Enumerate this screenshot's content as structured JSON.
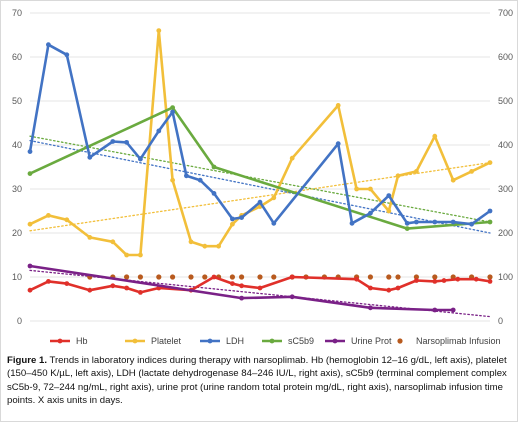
{
  "colors": {
    "hb": "#e0302a",
    "platelet": "#f2bf3a",
    "ldh": "#4273c4",
    "sc5b9": "#6aaa3f",
    "urine_prot": "#7a2187",
    "infusion": "#b85a1e",
    "grid": "#dcdcdc",
    "axis_text": "#595959"
  },
  "caption": {
    "label": "Figure 1.",
    "text": " Trends in laboratory indices during therapy with narsoplimab. Hb (hemoglobin 12–16 g/dL, left axis), platelet (150–450 K/µL, left axis), LDH (lactate dehydrogenase 84–246 IU/L, right axis), sC5b9 (terminal complement complex sC5b-9, 72–244 ng/mL, right axis), urine prot (urine random total protein mg/dL, right axis), narsoplimab infusion time points. X axis units in days."
  },
  "chart_data": {
    "type": "line",
    "title": "",
    "xlabel": "",
    "ylabel": "",
    "xlim": [
      0,
      100
    ],
    "ylim": [
      0,
      70
    ],
    "y2lim": [
      0,
      700
    ],
    "y_ticks": [
      0,
      10,
      20,
      30,
      40,
      50,
      60,
      70
    ],
    "y2_ticks": [
      0,
      100,
      200,
      300,
      400,
      500,
      600,
      700
    ],
    "grid": true,
    "legend_position": "bottom",
    "series": [
      {
        "name": "Hb",
        "key": "hb",
        "axis": "left",
        "trendline": false,
        "x": [
          0,
          4,
          8,
          13,
          18,
          21,
          24,
          28,
          35,
          40,
          44,
          46,
          50,
          57,
          71,
          74,
          78,
          80,
          84,
          88,
          90,
          93,
          97,
          100
        ],
        "y": [
          7,
          9,
          8.5,
          7,
          8,
          7.5,
          6.5,
          7.5,
          7,
          10,
          8.5,
          8,
          7.5,
          10,
          9.5,
          7.5,
          7,
          7.5,
          9.2,
          9,
          9.2,
          9.5,
          9.5,
          9
        ]
      },
      {
        "name": "Platelet",
        "key": "platelet",
        "axis": "left",
        "trendline": true,
        "trend": [
          [
            0,
            20.5
          ],
          [
            100,
            36
          ]
        ],
        "x": [
          0,
          4,
          8,
          13,
          18,
          21,
          24,
          28,
          31,
          35,
          38,
          41,
          44,
          46,
          50,
          53,
          57,
          67,
          71,
          74,
          78,
          80,
          84,
          88,
          92,
          96,
          100
        ],
        "y": [
          22,
          24,
          23,
          19,
          18,
          15,
          15,
          66,
          32,
          18,
          17,
          17,
          22,
          24,
          26,
          28,
          37,
          49,
          30,
          30,
          25,
          33,
          34,
          42,
          32,
          34,
          36
        ]
      },
      {
        "name": "LDH",
        "key": "ldh",
        "axis": "right",
        "trendline": true,
        "trend": [
          [
            0,
            410
          ],
          [
            100,
            200
          ]
        ],
        "x": [
          0,
          4,
          8,
          13,
          18,
          21,
          24,
          28,
          31,
          34,
          37,
          40,
          44,
          46,
          50,
          53,
          67,
          70,
          74,
          78,
          82,
          84,
          88,
          92,
          96,
          100
        ],
        "y": [
          385,
          628,
          605,
          372,
          408,
          406,
          368,
          432,
          475,
          330,
          320,
          290,
          232,
          235,
          270,
          222,
          403,
          222,
          245,
          285,
          222,
          225,
          225,
          225,
          220,
          250
        ]
      },
      {
        "name": "sC5b9",
        "key": "sc5b9",
        "axis": "right",
        "trendline": true,
        "trend": [
          [
            0,
            420
          ],
          [
            100,
            225
          ]
        ],
        "x": [
          0,
          31,
          40,
          82,
          100
        ],
        "y": [
          335,
          485,
          350,
          210,
          225
        ]
      },
      {
        "name": "Urine Prot",
        "key": "urine_prot",
        "axis": "right",
        "trendline": true,
        "trend": [
          [
            0,
            115
          ],
          [
            100,
            10
          ]
        ],
        "x": [
          0,
          46,
          57,
          74,
          88,
          92
        ],
        "y": [
          125,
          52,
          55,
          30,
          25,
          25
        ]
      },
      {
        "name": "Narsoplimab Infusion",
        "key": "infusion",
        "axis": "left",
        "marker_only": true,
        "x": [
          13,
          18,
          21,
          24,
          28,
          31,
          35,
          38,
          41,
          44,
          46,
          50,
          53,
          57,
          60,
          64,
          67,
          71,
          74,
          78,
          80,
          84,
          88,
          92,
          96,
          100
        ],
        "y": [
          10,
          10,
          10,
          10,
          10,
          10,
          10,
          10,
          10,
          10,
          10,
          10,
          10,
          10,
          10,
          10,
          10,
          10,
          10,
          10,
          10,
          10,
          10,
          10,
          10,
          10
        ]
      }
    ]
  }
}
